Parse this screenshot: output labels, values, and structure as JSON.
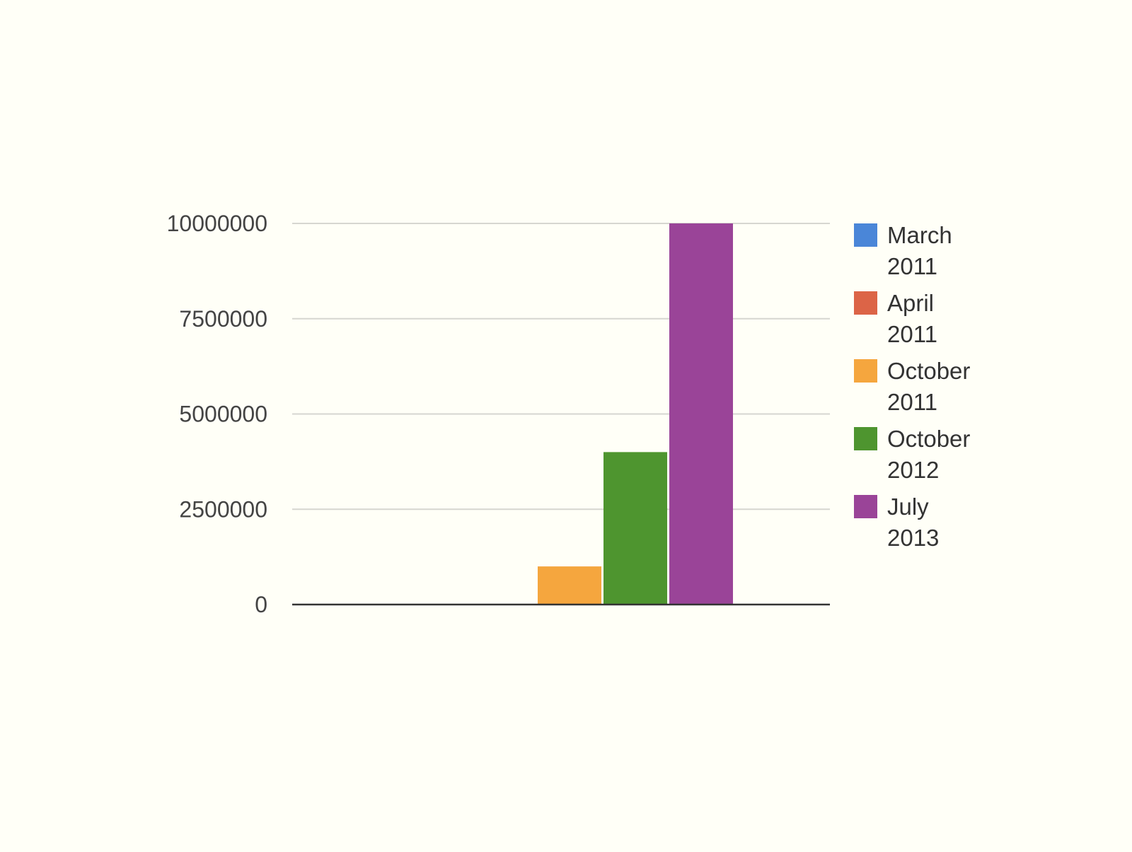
{
  "chart_data": {
    "type": "bar",
    "title": "",
    "xlabel": "",
    "ylabel": "",
    "ylim": [
      0,
      10000000
    ],
    "y_ticks": [
      "0",
      "2500000",
      "5000000",
      "7500000",
      "10000000"
    ],
    "y_tick_values": [
      0,
      2500000,
      5000000,
      7500000,
      10000000
    ],
    "grid": true,
    "legend_position": "right",
    "categories": [
      ""
    ],
    "series": [
      {
        "name": "March 2011",
        "name_lines": [
          "March",
          "2011"
        ],
        "values": [
          0
        ],
        "color": "#4a86d8"
      },
      {
        "name": "April 2011",
        "name_lines": [
          "April",
          "2011"
        ],
        "values": [
          0
        ],
        "color": "#dc6447"
      },
      {
        "name": "October 2011",
        "name_lines": [
          "October",
          "2011"
        ],
        "values": [
          1000000
        ],
        "color": "#f5a63e"
      },
      {
        "name": "October 2012",
        "name_lines": [
          "October",
          "2012"
        ],
        "values": [
          4000000
        ],
        "color": "#4e952f"
      },
      {
        "name": "July 2013",
        "name_lines": [
          "July",
          "2013"
        ],
        "values": [
          10000000
        ],
        "color": "#9a4498"
      }
    ]
  },
  "colors": {
    "background": "#fffff7",
    "gridline": "#d6d6d0",
    "baseline": "#333333",
    "tick_text": "#444444",
    "legend_text": "#333333"
  }
}
